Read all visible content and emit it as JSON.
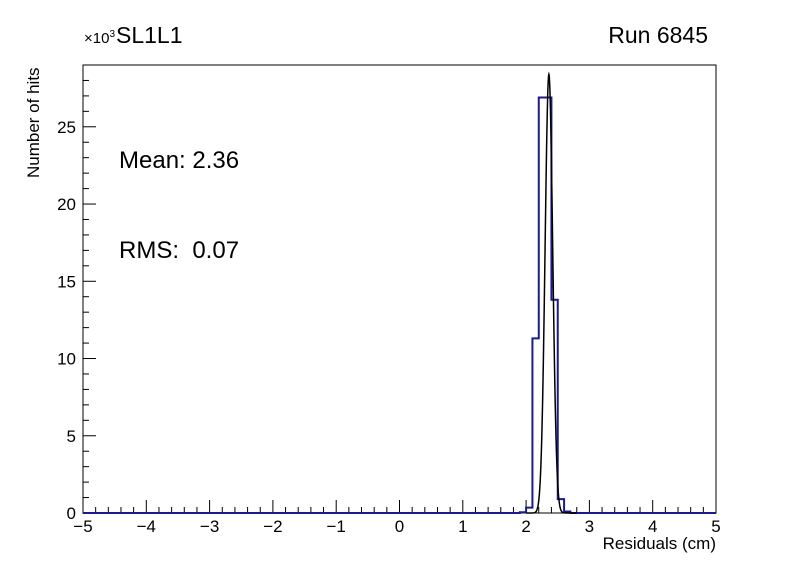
{
  "figure": {
    "title": "SL1L1",
    "run_label": "Run 6845",
    "y_multiplier_base": "×10",
    "y_multiplier_exp": "3",
    "stats_line1": "Mean: 2.36",
    "stats_line2": "RMS:  0.07",
    "xlabel": "Residuals (cm)",
    "ylabel": "Number of hits"
  },
  "chart_data": {
    "type": "bar",
    "title": "SL1L1",
    "subtitle": "Run 6845",
    "xlabel": "Residuals (cm)",
    "ylabel": "Number of hits",
    "y_units": "×10³ hits",
    "xlim": [
      -5,
      5
    ],
    "ylim": [
      0,
      29
    ],
    "grid": false,
    "x_ticks": [
      {
        "value": -5,
        "label": "−5"
      },
      {
        "value": -4,
        "label": "−4"
      },
      {
        "value": -3,
        "label": "−3"
      },
      {
        "value": -2,
        "label": "−2"
      },
      {
        "value": -1,
        "label": "−1"
      },
      {
        "value": 0,
        "label": "0"
      },
      {
        "value": 1,
        "label": "1"
      },
      {
        "value": 2,
        "label": "2"
      },
      {
        "value": 3,
        "label": "3"
      },
      {
        "value": 4,
        "label": "4"
      },
      {
        "value": 5,
        "label": "5"
      }
    ],
    "y_ticks": [
      {
        "value": 0,
        "label": "0"
      },
      {
        "value": 5,
        "label": "5"
      },
      {
        "value": 10,
        "label": "10"
      },
      {
        "value": 15,
        "label": "15"
      },
      {
        "value": 20,
        "label": "20"
      },
      {
        "value": 25,
        "label": "25"
      }
    ],
    "x_minor_step": 0.2,
    "y_minor_step": 1,
    "stats": {
      "mean": 2.36,
      "rms": 0.07
    },
    "histogram": {
      "bin_width": 0.1,
      "bins": [
        {
          "x": 1.9,
          "y": 0.05
        },
        {
          "x": 2.0,
          "y": 0.35
        },
        {
          "x": 2.1,
          "y": 11.3
        },
        {
          "x": 2.2,
          "y": 26.9
        },
        {
          "x": 2.3,
          "y": 26.9
        },
        {
          "x": 2.4,
          "y": 13.8
        },
        {
          "x": 2.5,
          "y": 0.9
        },
        {
          "x": 2.6,
          "y": 0.1
        }
      ]
    },
    "fit": {
      "type": "gaussian",
      "mean": 2.36,
      "sigma": 0.06,
      "amplitude": 28.4,
      "range": [
        2.0,
        2.8
      ]
    },
    "colors": {
      "histogram": "#1b1b8e",
      "fit": "#000000",
      "frame": "#000000",
      "background": "#ffffff"
    }
  }
}
